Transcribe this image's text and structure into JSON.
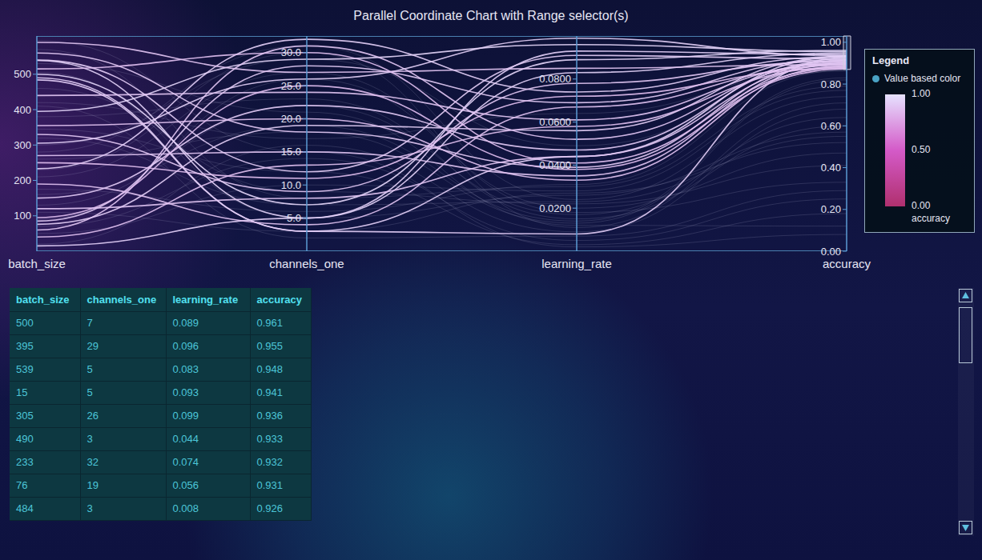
{
  "chart_data": {
    "type": "parallel_coordinates",
    "title": "Parallel Coordinate Chart with Range selector(s)",
    "dimensions": [
      {
        "name": "batch_size",
        "ylim": [
          0,
          608
        ],
        "yticks": [
          100,
          200,
          300,
          400,
          500
        ]
      },
      {
        "name": "channels_one",
        "ylim": [
          0,
          32.5
        ],
        "yticks": [
          {
            "value": 5,
            "label": "5.0"
          },
          {
            "value": 10,
            "label": "10.0"
          },
          {
            "value": 15,
            "label": "15.0"
          },
          {
            "value": 20,
            "label": "20.0"
          },
          {
            "value": 25,
            "label": "25.0"
          },
          {
            "value": 30,
            "label": "30.0"
          }
        ]
      },
      {
        "name": "learning_rate",
        "ylim": [
          0,
          0.1
        ],
        "yticks": [
          {
            "value": 0.02,
            "label": "0.0200"
          },
          {
            "value": 0.04,
            "label": "0.0400"
          },
          {
            "value": 0.06,
            "label": "0.0600"
          },
          {
            "value": 0.08,
            "label": "0.0800"
          }
        ]
      },
      {
        "name": "accuracy",
        "ylim": [
          0,
          1.03
        ],
        "yticks": [
          {
            "value": 0,
            "label": "0.00"
          },
          {
            "value": 0.2,
            "label": "0.20"
          },
          {
            "value": 0.4,
            "label": "0.40"
          },
          {
            "value": 0.6,
            "label": "0.60"
          },
          {
            "value": 0.8,
            "label": "0.80"
          },
          {
            "value": 1,
            "label": "1.00"
          }
        ]
      }
    ],
    "records": [
      [
        500,
        7,
        0.089,
        0.961
      ],
      [
        395,
        29,
        0.096,
        0.955
      ],
      [
        539,
        5,
        0.083,
        0.948
      ],
      [
        15,
        5,
        0.093,
        0.941
      ],
      [
        305,
        26,
        0.099,
        0.936
      ],
      [
        490,
        3,
        0.044,
        0.933
      ],
      [
        233,
        32,
        0.074,
        0.932
      ],
      [
        76,
        19,
        0.056,
        0.931
      ],
      [
        484,
        3,
        0.008,
        0.926
      ],
      [
        540,
        12,
        0.091,
        0.921
      ],
      [
        85,
        28,
        0.069,
        0.918
      ],
      [
        150,
        22,
        0.047,
        0.915
      ],
      [
        560,
        18,
        0.039,
        0.912
      ],
      [
        330,
        9,
        0.078,
        0.909
      ],
      [
        60,
        31,
        0.052,
        0.905
      ],
      [
        270,
        15,
        0.035,
        0.902
      ],
      [
        440,
        24,
        0.061,
        0.899
      ],
      [
        120,
        8,
        0.044,
        0.896
      ],
      [
        590,
        27,
        0.085,
        0.893
      ],
      [
        190,
        4,
        0.067,
        0.889
      ],
      [
        355,
        20,
        0.033,
        0.886
      ],
      [
        40,
        13,
        0.058,
        0.882
      ],
      [
        515,
        30,
        0.041,
        0.879
      ],
      [
        250,
        11,
        0.072,
        0.875
      ],
      [
        95,
        25,
        0.038,
        0.872
      ],
      [
        420,
        17,
        0.064,
        0.869
      ],
      [
        175,
        6,
        0.031,
        0.866
      ],
      [
        300,
        29,
        0.049,
        0.863
      ],
      [
        530,
        21,
        0.012,
        0.12
      ],
      [
        70,
        14,
        0.005,
        0.25
      ],
      [
        210,
        27,
        0.018,
        0.33
      ],
      [
        460,
        9,
        0.022,
        0.41
      ],
      [
        110,
        3,
        0.027,
        0.52
      ],
      [
        380,
        23,
        0.015,
        0.6
      ],
      [
        20,
        16,
        0.009,
        0.68
      ],
      [
        280,
        31,
        0.024,
        0.74
      ],
      [
        570,
        8,
        0.03,
        0.79
      ],
      [
        160,
        19,
        0.014,
        0.83
      ],
      [
        345,
        12,
        0.003,
        0.18
      ],
      [
        90,
        26,
        0.02,
        0.47
      ],
      [
        505,
        5,
        0.026,
        0.57
      ],
      [
        230,
        30,
        0.011,
        0.71
      ],
      [
        410,
        2,
        0.007,
        0.29
      ],
      [
        130,
        22,
        0.017,
        0.64
      ],
      [
        50,
        10,
        0.028,
        0.77
      ],
      [
        595,
        15,
        0.002,
        0.08
      ],
      [
        320,
        7,
        0.023,
        0.55
      ],
      [
        260,
        18,
        0.013,
        0.82
      ]
    ],
    "color_by": "accuracy",
    "colorbar": {
      "lim": [
        0,
        1
      ],
      "ticks": [
        {
          "value": 0,
          "label": "0.00"
        },
        {
          "value": 0.5,
          "label": "0.50"
        },
        {
          "value": 1,
          "label": "1.00"
        }
      ]
    },
    "legend_title": "Legend",
    "legend_label": "Value based color",
    "range_selector": {
      "dimension": "accuracy",
      "range": [
        0.87,
        1.03
      ]
    }
  },
  "table": {
    "columns": [
      "batch_size",
      "channels_one",
      "learning_rate",
      "accuracy"
    ],
    "rows": [
      [
        500,
        7,
        0.089,
        0.961
      ],
      [
        395,
        29,
        0.096,
        0.955
      ],
      [
        539,
        5,
        0.083,
        0.948
      ],
      [
        15,
        5,
        0.093,
        0.941
      ],
      [
        305,
        26,
        0.099,
        0.936
      ],
      [
        490,
        3,
        0.044,
        0.933
      ],
      [
        233,
        32,
        0.074,
        0.932
      ],
      [
        76,
        19,
        0.056,
        0.931
      ],
      [
        484,
        3,
        0.008,
        0.926
      ]
    ]
  }
}
